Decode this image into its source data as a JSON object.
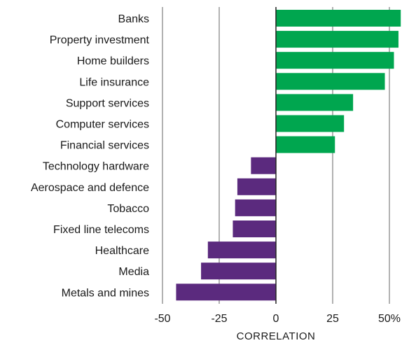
{
  "chart_data": {
    "type": "bar",
    "orientation": "horizontal",
    "categories": [
      "Banks",
      "Property investment",
      "Home builders",
      "Life insurance",
      "Support services",
      "Computer services",
      "Financial services",
      "Technology hardware",
      "Aerospace and defence",
      "Tobacco",
      "Fixed line telecoms",
      "Healthcare",
      "Media",
      "Metals and mines"
    ],
    "values": [
      55,
      54,
      52,
      48,
      34,
      30,
      26,
      -11,
      -17,
      -18,
      -19,
      -30,
      -33,
      -44
    ],
    "xlabel": "CORRELATION",
    "xlim": [
      -50,
      55
    ],
    "xticks": [
      -50,
      -25,
      0,
      25,
      50
    ],
    "xtick_labels": [
      "-50",
      "-25",
      "0",
      "25",
      "50%"
    ],
    "grid": true,
    "colors": {
      "positive": "#00a64f",
      "negative": "#5b2a7e",
      "grid": "#666666",
      "zero_line": "#222222"
    }
  }
}
